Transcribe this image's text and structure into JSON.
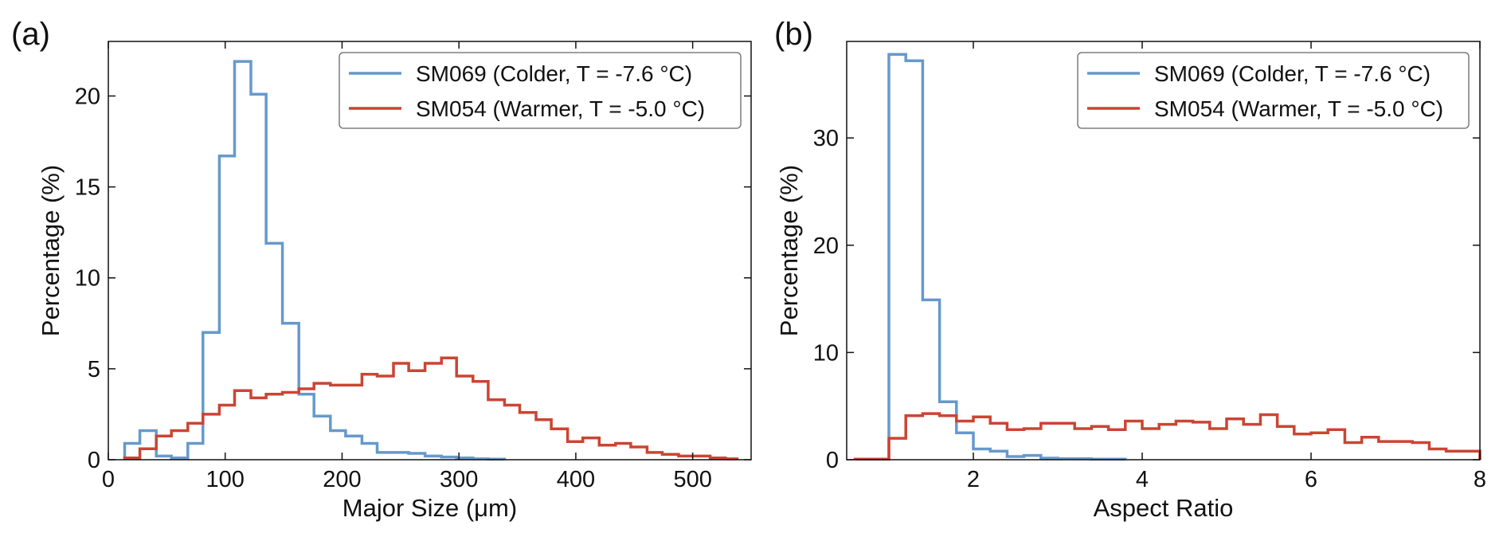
{
  "colors": {
    "blue": "#6699cc",
    "red": "#cc4433",
    "axis": "#111111"
  },
  "chart_data": [
    {
      "type": "histogram",
      "panel_label": "(a)",
      "xlabel": "Major Size (μm)",
      "ylabel": "Percentage (%)",
      "xlim": [
        0,
        550
      ],
      "ylim": [
        0,
        23
      ],
      "xticks": [
        0,
        100,
        200,
        300,
        400,
        500
      ],
      "xtick_labels": [
        "0",
        "100",
        "200",
        "300",
        "400",
        "500"
      ],
      "yticks": [
        0,
        5,
        10,
        15,
        20
      ],
      "ytick_labels": [
        "0",
        "5",
        "10",
        "15",
        "20"
      ],
      "legend_position": "top-right",
      "series": [
        {
          "name": "SM069 (Colder, T = -7.6 °C)",
          "color": "#6699cc",
          "bin_edges": [
            14,
            27,
            41,
            54,
            68,
            81,
            95,
            108,
            122,
            135,
            149,
            163,
            176,
            190,
            203,
            217,
            230,
            244,
            257,
            271,
            285,
            298,
            312,
            325,
            339
          ],
          "values": [
            0.9,
            1.6,
            0.2,
            0.1,
            0.9,
            7.0,
            16.7,
            21.9,
            20.1,
            11.9,
            7.5,
            3.6,
            2.4,
            1.6,
            1.3,
            0.9,
            0.4,
            0.4,
            0.35,
            0.2,
            0.15,
            0.1,
            0.05,
            0.03
          ]
        },
        {
          "name": "SM054 (Warmer, T = -5.0 °C)",
          "color": "#cc4433",
          "bin_edges": [
            14,
            27,
            41,
            54,
            68,
            81,
            95,
            108,
            122,
            135,
            149,
            163,
            176,
            190,
            203,
            217,
            230,
            244,
            257,
            271,
            285,
            298,
            312,
            325,
            339,
            352,
            366,
            379,
            393,
            406,
            420,
            434,
            447,
            461,
            474,
            488,
            501,
            515,
            528,
            538
          ],
          "values": [
            0.1,
            0.6,
            1.3,
            1.6,
            2.0,
            2.5,
            3.0,
            3.8,
            3.4,
            3.6,
            3.7,
            3.9,
            4.2,
            4.1,
            4.1,
            4.7,
            4.6,
            5.3,
            4.9,
            5.3,
            5.6,
            4.6,
            4.3,
            3.3,
            3.0,
            2.6,
            2.2,
            1.7,
            1.0,
            1.2,
            0.8,
            0.9,
            0.7,
            0.4,
            0.3,
            0.2,
            0.2,
            0.1,
            0.05
          ]
        }
      ]
    },
    {
      "type": "histogram",
      "panel_label": "(b)",
      "xlabel": "Aspect Ratio",
      "ylabel": "Percentage (%)",
      "xlim": [
        0.5,
        8.0
      ],
      "ylim": [
        0,
        39
      ],
      "xticks": [
        2,
        4,
        6,
        8
      ],
      "xtick_labels": [
        "2",
        "4",
        "6",
        "8"
      ],
      "yticks": [
        0,
        10,
        20,
        30
      ],
      "ytick_labels": [
        "0",
        "10",
        "20",
        "30"
      ],
      "legend_position": "top-right",
      "series": [
        {
          "name": "SM069 (Colder, T = -7.6 °C)",
          "color": "#6699cc",
          "bin_edges": [
            1.0,
            1.2,
            1.4,
            1.6,
            1.8,
            2.0,
            2.2,
            2.4,
            2.6,
            2.8,
            3.0,
            3.2,
            3.4,
            3.6,
            3.8
          ],
          "values": [
            37.8,
            37.2,
            14.9,
            5.4,
            2.5,
            1.0,
            0.8,
            0.3,
            0.4,
            0.15,
            0.1,
            0.1,
            0.05,
            0.05
          ]
        },
        {
          "name": "SM054 (Warmer, T = -5.0 °C)",
          "color": "#cc4433",
          "bin_edges": [
            0.6,
            1.0,
            1.2,
            1.4,
            1.6,
            1.8,
            2.0,
            2.2,
            2.4,
            2.6,
            2.8,
            3.0,
            3.2,
            3.4,
            3.6,
            3.8,
            4.0,
            4.2,
            4.4,
            4.6,
            4.8,
            5.0,
            5.2,
            5.4,
            5.6,
            5.8,
            6.0,
            6.2,
            6.4,
            6.6,
            6.8,
            7.0,
            7.2,
            7.4,
            7.6,
            7.8,
            8.0
          ],
          "values": [
            0.05,
            2.0,
            4.1,
            4.3,
            4.1,
            3.6,
            4.0,
            3.4,
            2.8,
            2.9,
            3.4,
            3.4,
            2.9,
            3.1,
            2.8,
            3.6,
            2.9,
            3.3,
            3.6,
            3.5,
            2.9,
            3.8,
            3.3,
            4.2,
            3.1,
            2.4,
            2.5,
            2.8,
            1.6,
            2.1,
            1.7,
            1.7,
            1.6,
            1.0,
            0.8,
            0.8
          ]
        }
      ]
    }
  ]
}
